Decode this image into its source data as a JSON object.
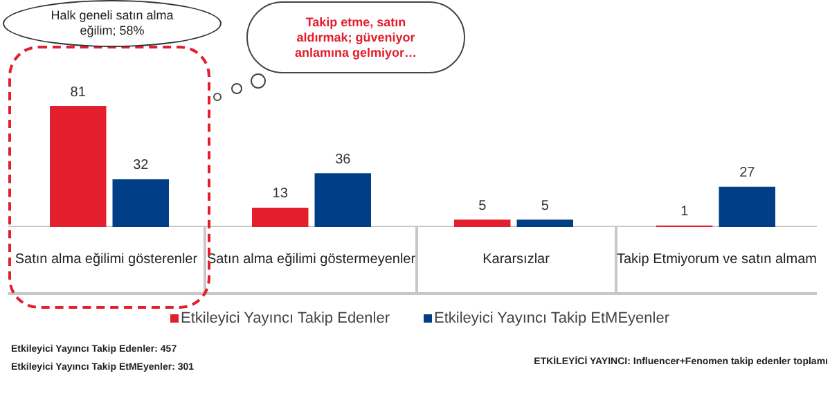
{
  "chart_data": {
    "type": "bar",
    "categories": [
      "Satın alma eğilimi gösterenler",
      "Satın alma eğilimi göstermeyenler",
      "Kararsızlar",
      "Takip Etmiyorum ve satın almam"
    ],
    "series": [
      {
        "name": "Etkileyici Yayıncı Takip Edenler",
        "color": "#e31e2d",
        "values": [
          81,
          13,
          5,
          1
        ]
      },
      {
        "name": "Etkileyici Yayıncı Takip EtMEyenler",
        "color": "#003f87",
        "values": [
          32,
          36,
          5,
          27
        ]
      }
    ],
    "data_labels": true,
    "legend": "bottom",
    "annotations": [
      "Halk geneli satın alma eğilim; 58%",
      "Takip etme, satın aldırmak; güveniyor anlamına gelmiyor…",
      "Etkileyici Yayıncı Takip Edenler: 457",
      "Etkileyici Yayıncı Takip EtMEyenler: 301",
      "ETKİLEYİCİ YAYINCI: Influencer+Fenomen takip edenler toplamı"
    ]
  }
}
